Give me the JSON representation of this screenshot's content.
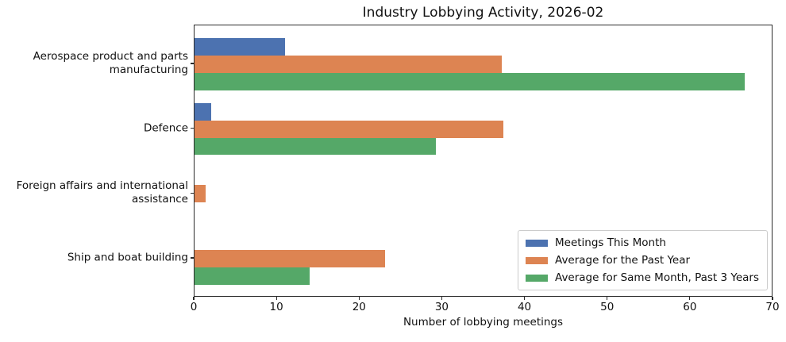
{
  "title": "Industry Lobbying Activity, 2026-02",
  "chart_data": {
    "type": "bar",
    "orientation": "horizontal",
    "title": "Industry Lobbying Activity, 2026-02",
    "xlabel": "Number of lobbying meetings",
    "ylabel": "",
    "xlim": [
      0,
      70
    ],
    "xticks": [
      0,
      10,
      20,
      30,
      40,
      50,
      60,
      70
    ],
    "grid": false,
    "legend_position": "lower right",
    "categories": [
      "Aerospace product and parts\nmanufacturing",
      "Defence",
      "Foreign affairs and international\nassistance",
      "Ship and boat building"
    ],
    "series": [
      {
        "name": "Meetings This Month",
        "color": "#4C72B0",
        "values": [
          11,
          2,
          0,
          0
        ]
      },
      {
        "name": "Average for the Past Year",
        "color": "#DD8452",
        "values": [
          37.3,
          37.5,
          1.3,
          23.1
        ]
      },
      {
        "name": "Average for Same Month, Past 3 Years",
        "color": "#55A868",
        "values": [
          66.7,
          29.3,
          0,
          14
        ]
      }
    ]
  }
}
